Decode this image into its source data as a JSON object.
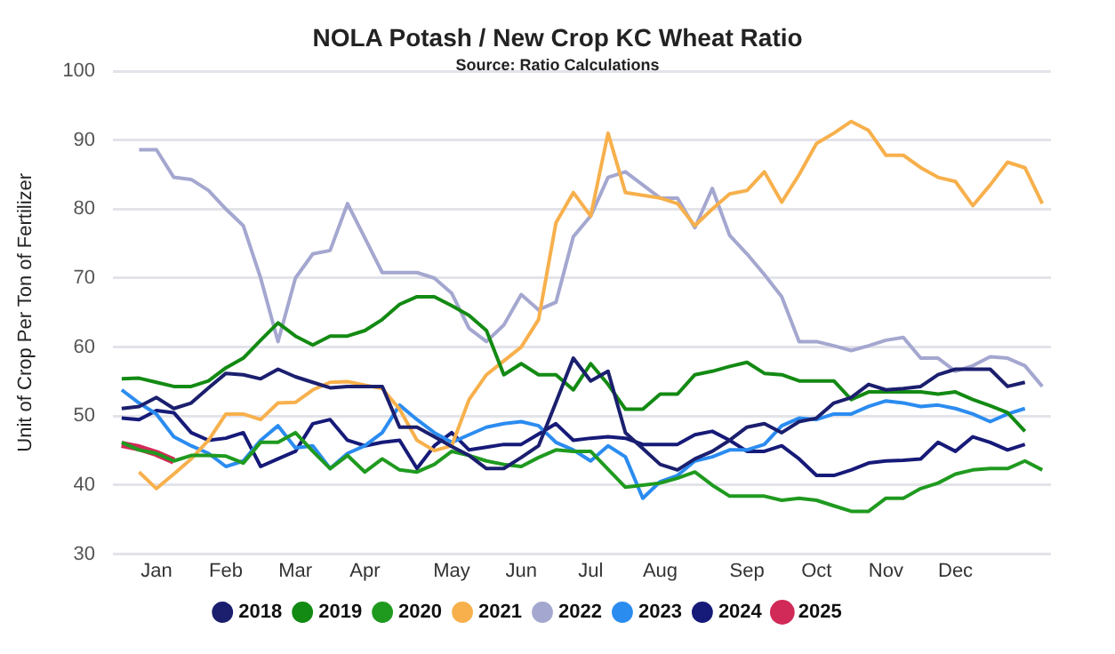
{
  "chart_data": {
    "type": "line",
    "title": "NOLA Potash / New Crop KC Wheat Ratio",
    "subtitle": "Source: Ratio Calculations",
    "ylabel": "Unit of Crop Per Ton of Fertilizer",
    "categories": [
      null,
      null,
      "Jan",
      null,
      null,
      null,
      "Feb",
      null,
      null,
      null,
      "Mar",
      null,
      null,
      null,
      "Apr",
      null,
      null,
      null,
      null,
      "May",
      null,
      null,
      null,
      "Jun",
      null,
      null,
      null,
      "Jul",
      null,
      null,
      null,
      "Aug",
      null,
      null,
      null,
      null,
      "Sep",
      null,
      null,
      null,
      "Oct",
      null,
      null,
      null,
      "Nov",
      null,
      null,
      null,
      "Dec",
      null,
      null,
      null,
      null,
      null
    ],
    "ylim": [
      30,
      100
    ],
    "yticks": [
      30,
      40,
      50,
      60,
      70,
      80,
      90,
      100
    ],
    "grid": "y",
    "legend": "bottom",
    "marker": "none",
    "line_style": "solid",
    "series": [
      {
        "name": "2018",
        "color": "#1b1f6e",
        "values": [
          51.1,
          51.4,
          52.7,
          51.1,
          51.9,
          54.1,
          56.2,
          56,
          55.4,
          56.8,
          55.7,
          54.9,
          54.1,
          54.3,
          54.3,
          54.3,
          48.4,
          48.4,
          47,
          45.6,
          44.3,
          42.4,
          42.4,
          44,
          45.7,
          52,
          58.4,
          55.1,
          56.5,
          47.6,
          45.3,
          43,
          42.2,
          43.8,
          44.9,
          46.5,
          48.4,
          48.9,
          47.6,
          49.2,
          49.7,
          51.9,
          52.7,
          54.6,
          53.8,
          54,
          54.3,
          56,
          56.8,
          56.8,
          56.8,
          54.3,
          54.9,
          null
        ]
      },
      {
        "name": "2019",
        "color": "#138a13",
        "values": [
          55.4,
          55.5,
          54.9,
          54.3,
          54.3,
          55.1,
          57,
          58.4,
          61,
          63.5,
          61.6,
          60.3,
          61.6,
          61.6,
          62.4,
          64,
          66.2,
          67.3,
          67.3,
          66,
          64.6,
          62.4,
          56,
          57.6,
          56,
          56,
          53.8,
          57.6,
          54.6,
          51,
          51,
          53.2,
          53.2,
          56,
          56.5,
          57.2,
          57.8,
          56.2,
          56,
          55.1,
          55.1,
          55.1,
          52.4,
          53.5,
          53.5,
          53.5,
          53.5,
          53.2,
          53.5,
          52.4,
          51.5,
          50.5,
          47.8,
          null
        ]
      },
      {
        "name": "2020",
        "color": "#1f9a1f",
        "values": [
          46.2,
          45.1,
          44.6,
          43.5,
          44.3,
          44.3,
          44.2,
          43.2,
          46.2,
          46.2,
          47.6,
          44.9,
          42.4,
          44.3,
          41.9,
          43.8,
          42.2,
          41.9,
          43,
          44.9,
          44.3,
          43.5,
          43,
          42.7,
          44,
          45.1,
          44.9,
          44.9,
          42.3,
          39.7,
          40,
          40.3,
          41,
          41.9,
          40,
          38.4,
          38.4,
          38.4,
          37.8,
          38.1,
          37.8,
          37,
          36.2,
          36.2,
          38.1,
          38.1,
          39.5,
          40.3,
          41.6,
          42.2,
          42.4,
          42.4,
          43.5,
          42.2
        ]
      },
      {
        "name": "2021",
        "color": "#f7b04c",
        "values": [
          null,
          41.9,
          39.5,
          41.6,
          43.8,
          46.5,
          50.3,
          50.3,
          49.5,
          51.9,
          52,
          53.8,
          54.9,
          55,
          54.5,
          54,
          51,
          46.5,
          45,
          45.7,
          52.4,
          56,
          58,
          60,
          64,
          78,
          82.4,
          79,
          91,
          82.4,
          82,
          81.6,
          80.8,
          77.6,
          80,
          82.2,
          82.7,
          85.4,
          81,
          85,
          89.5,
          91,
          92.7,
          91.4,
          87.8,
          87.8,
          86,
          84.6,
          84,
          80.5,
          83.5,
          86.8,
          86,
          80.8
        ]
      },
      {
        "name": "2022",
        "color": "#a4a7cf",
        "values": [
          null,
          88.6,
          88.6,
          84.6,
          84.3,
          82.7,
          80,
          77.6,
          70,
          60.8,
          70,
          73.5,
          74,
          80.8,
          75.8,
          70.8,
          70.8,
          70.8,
          70,
          67.8,
          62.7,
          60.8,
          63.2,
          67.6,
          65.4,
          66.5,
          76,
          79,
          84.6,
          85.4,
          83.5,
          81.6,
          81.6,
          77.3,
          83,
          76.2,
          73.5,
          70.5,
          67.3,
          60.8,
          60.8,
          60.2,
          59.5,
          60.2,
          61,
          61.4,
          58.4,
          58.4,
          56.5,
          57.3,
          58.6,
          58.4,
          57.3,
          54.3
        ]
      },
      {
        "name": "2023",
        "color": "#2b8cf0",
        "values": [
          53.8,
          51.9,
          50.3,
          47,
          45.7,
          44.6,
          42.7,
          43.5,
          46.5,
          48.6,
          45.4,
          45.7,
          42.4,
          44.6,
          45.7,
          47.6,
          51.6,
          49.5,
          47.6,
          46.2,
          47.3,
          48.4,
          48.9,
          49.2,
          48.6,
          46.2,
          45.1,
          43.5,
          45.7,
          44.1,
          38.1,
          40.5,
          41.4,
          43.5,
          44.1,
          45.1,
          45.1,
          45.9,
          48.6,
          49.7,
          49.5,
          50.3,
          50.3,
          51.4,
          52.2,
          51.9,
          51.4,
          51.6,
          51.1,
          50.3,
          49.2,
          50.3,
          51.1,
          null
        ]
      },
      {
        "name": "2024",
        "color": "#161a78",
        "values": [
          49.7,
          49.5,
          50.8,
          50.5,
          47.6,
          46.5,
          46.8,
          47.6,
          42.7,
          43.8,
          44.9,
          48.9,
          49.5,
          46.5,
          45.7,
          46.2,
          46.5,
          42.4,
          45.7,
          47.6,
          45.1,
          45.5,
          45.9,
          45.9,
          47.4,
          48.9,
          46.5,
          46.8,
          47,
          46.8,
          45.9,
          45.9,
          45.9,
          47.3,
          47.8,
          46.5,
          44.9,
          44.9,
          45.7,
          43.8,
          41.4,
          41.4,
          42.2,
          43.2,
          43.5,
          43.6,
          43.8,
          46.2,
          44.9,
          47,
          46.2,
          45.1,
          45.9,
          null
        ]
      },
      {
        "name": "2025",
        "color": "#d12a58",
        "values": [
          45.9,
          45.4,
          44.6,
          43.5,
          null,
          null,
          null,
          null,
          null,
          null,
          null,
          null,
          null,
          null,
          null,
          null,
          null,
          null,
          null,
          null,
          null,
          null,
          null,
          null,
          null,
          null,
          null,
          null,
          null,
          null,
          null,
          null,
          null,
          null,
          null,
          null,
          null,
          null,
          null,
          null,
          null,
          null,
          null,
          null,
          null,
          null,
          null,
          null,
          null,
          null,
          null,
          null,
          null,
          null
        ]
      }
    ]
  }
}
